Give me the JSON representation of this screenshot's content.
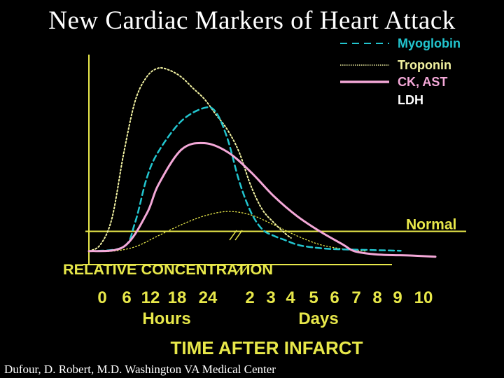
{
  "title": "New Cardiac Markers of Heart Attack",
  "footer": "Dufour,  D. Robert, M.D. Washington VA Medical Center",
  "chart_data": {
    "type": "line",
    "xlabel": "TIME AFTER INFARCT",
    "ylabel": "RELATIVE CONCENTRATION",
    "x_ticks": [
      "0",
      "6",
      "12",
      "18",
      "24",
      "2",
      "3",
      "4",
      "5",
      "6",
      "7",
      "8",
      "9",
      "10"
    ],
    "x_group_labels": [
      "Hours",
      "Days"
    ],
    "y_values_unit": "relative concentration (Normal = 1)",
    "grid": false,
    "legend_position": "top-right",
    "normal_line": {
      "label": "Normal",
      "value": 1.0,
      "color": "#e8e84a"
    },
    "colors": {
      "axis": "#e8e84a",
      "text": "#e8e84a",
      "myoglobin": "#22c5cf",
      "troponin": "#f3f3a2",
      "ck_ast": "#f4a8d8",
      "ldh": "#e8e84a"
    },
    "series": [
      {
        "name": "Myoglobin",
        "style": "dashed",
        "points": [
          [
            0,
            0.1
          ],
          [
            3,
            0.3
          ],
          [
            4,
            1.4
          ],
          [
            5,
            3.4
          ],
          [
            6,
            4.6
          ],
          [
            8,
            6.0
          ],
          [
            10,
            6.6
          ],
          [
            11,
            6.4
          ],
          [
            12,
            5.2
          ],
          [
            13,
            3.3
          ],
          [
            14,
            1.9
          ],
          [
            15,
            1.1
          ],
          [
            16,
            0.8
          ],
          [
            17,
            0.6
          ],
          [
            18,
            0.4
          ],
          [
            19,
            0.3
          ],
          [
            21,
            0.2
          ],
          [
            24,
            0.16
          ],
          [
            27,
            0.12
          ]
        ]
      },
      {
        "name": "Troponin",
        "style": "dotted",
        "points": [
          [
            0,
            0.1
          ],
          [
            1,
            0.4
          ],
          [
            2,
            1.6
          ],
          [
            3,
            4.5
          ],
          [
            4,
            6.9
          ],
          [
            5,
            8.0
          ],
          [
            6,
            8.4
          ],
          [
            7,
            8.3
          ],
          [
            8,
            8.0
          ],
          [
            9,
            7.5
          ],
          [
            10,
            7.0
          ],
          [
            11,
            6.3
          ],
          [
            12,
            5.6
          ],
          [
            13,
            4.6
          ],
          [
            14,
            3.1
          ],
          [
            15,
            2.0
          ],
          [
            16,
            1.4
          ],
          [
            17,
            0.9
          ],
          [
            17.5,
            0.7
          ]
        ]
      },
      {
        "name": "CK, AST",
        "style": "solid",
        "points": [
          [
            0,
            0.1
          ],
          [
            3,
            0.3
          ],
          [
            5,
            1.8
          ],
          [
            6,
            3.1
          ],
          [
            8,
            4.7
          ],
          [
            10,
            5.0
          ],
          [
            12,
            4.6
          ],
          [
            14,
            3.7
          ],
          [
            16,
            2.6
          ],
          [
            18,
            1.7
          ],
          [
            20,
            1.0
          ],
          [
            22,
            0.4
          ],
          [
            23,
            0.1
          ],
          [
            25,
            -0.05
          ],
          [
            28,
            -0.1
          ],
          [
            30,
            -0.15
          ]
        ]
      },
      {
        "name": "LDH",
        "style": "dotted",
        "points": [
          [
            0,
            0.1
          ],
          [
            2,
            0.1
          ],
          [
            4,
            0.3
          ],
          [
            6,
            0.8
          ],
          [
            8,
            1.3
          ],
          [
            10,
            1.7
          ],
          [
            12,
            1.9
          ],
          [
            14,
            1.75
          ],
          [
            16,
            1.3
          ],
          [
            18,
            0.8
          ],
          [
            20,
            0.4
          ],
          [
            22,
            0.2
          ],
          [
            24,
            0.1
          ]
        ]
      }
    ]
  }
}
